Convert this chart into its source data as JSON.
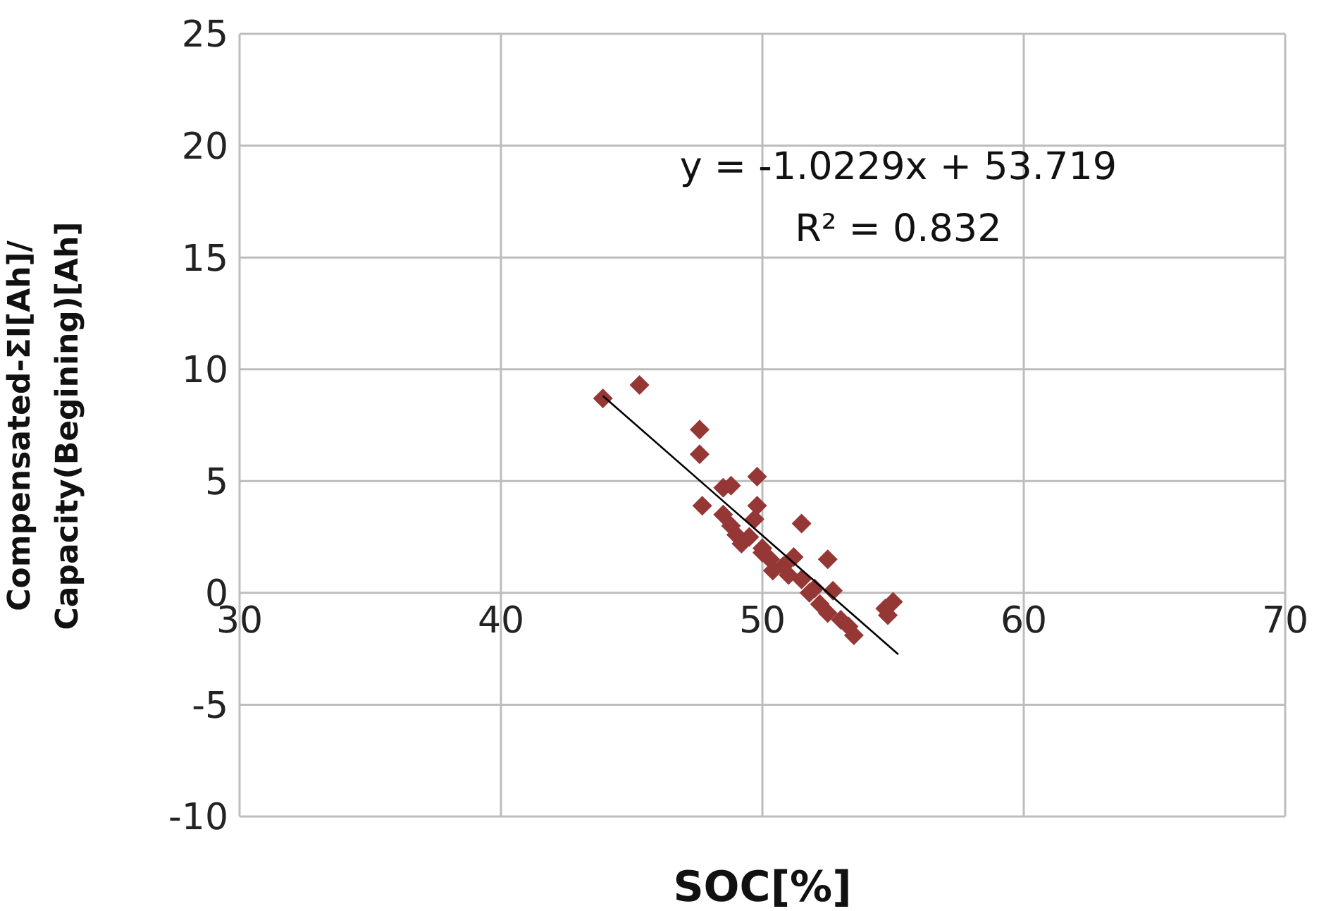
{
  "chart_data": {
    "type": "scatter",
    "xlabel": "SOC[%]",
    "ylabel": "Compensated-ΣI[Ah]/ Capacity(Begining)[Ah]",
    "xlim": [
      30,
      70
    ],
    "xticks": [
      30,
      40,
      50,
      60,
      70
    ],
    "ylim": [
      -10,
      25
    ],
    "yticks": [
      -10,
      -5,
      0,
      5,
      10,
      15,
      20,
      25
    ],
    "grid": true,
    "series": [
      {
        "marker": "diamond",
        "color": "#953735",
        "x": [
          43.9,
          45.3,
          47.6,
          47.6,
          47.7,
          48.5,
          48.8,
          49.8,
          49.8,
          49.7,
          48.5,
          48.8,
          49.0,
          49.2,
          49.5,
          50.0,
          50.3,
          50.4,
          50.8,
          51.2,
          51.5,
          51.0,
          51.5,
          52.0,
          52.5,
          52.7,
          52.2,
          52.5,
          53.0,
          53.5,
          53.3,
          54.7,
          55.0,
          54.8,
          51.8,
          50.0
        ],
        "values": [
          8.7,
          9.3,
          7.3,
          6.2,
          3.9,
          4.7,
          4.8,
          5.2,
          3.9,
          3.3,
          3.5,
          3.0,
          2.6,
          2.2,
          2.5,
          2.0,
          1.5,
          1.0,
          1.2,
          1.6,
          3.1,
          0.8,
          0.6,
          0.2,
          1.5,
          0.1,
          -0.5,
          -0.9,
          -1.2,
          -1.9,
          -1.5,
          -0.7,
          -0.4,
          -1.0,
          0.0,
          1.8
        ]
      },
      {
        "type": "line",
        "marker": "none",
        "color": "#000000",
        "x": [
          43.9,
          55.2
        ],
        "values": [
          8.81,
          -2.75
        ]
      }
    ],
    "annotations": [
      "y = -1.0229x + 53.719",
      "R² = 0.832"
    ]
  }
}
